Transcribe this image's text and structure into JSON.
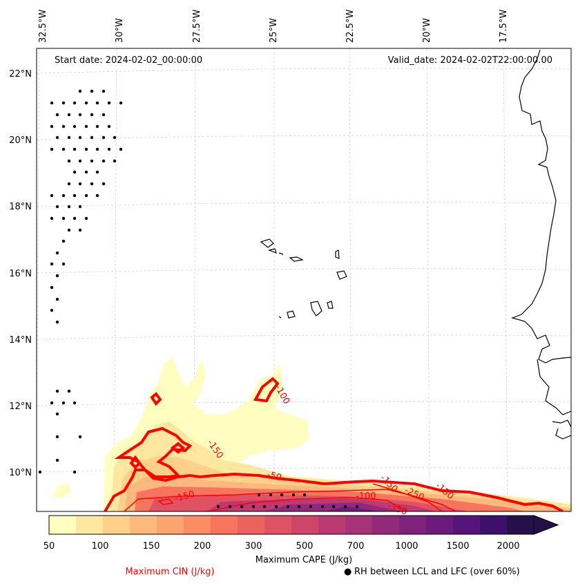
{
  "map": {
    "start_date": "Start date: 2024-02-02_00:00:00",
    "valid_date": "Valid_date: 2024-02-02T22:00:00.00",
    "lon_labels": [
      "32.5°W",
      "30°W",
      "27.5°W",
      "25°W",
      "22.5°W",
      "20°W",
      "17.5°W"
    ],
    "lat_labels": [
      "22°N",
      "20°N",
      "18°N",
      "16°N",
      "14°N",
      "12°N",
      "10°N"
    ],
    "cin_contour_labels": [
      "-100",
      "-150",
      "-50",
      "-150",
      "-100",
      "-250",
      "-150",
      "-150",
      "-350"
    ]
  },
  "colorbar": {
    "ticks": [
      "50",
      "100",
      "150",
      "200",
      "300",
      "500",
      "700",
      "1000",
      "1500",
      "2000"
    ],
    "label": "Maximum CAPE (J/kg)",
    "colors": [
      "#fffec0",
      "#fee7a0",
      "#fed08a",
      "#fdb97d",
      "#fca46e",
      "#fb8c63",
      "#f6755c",
      "#ec625d",
      "#e05263",
      "#cf4469",
      "#bb3a72",
      "#a73277",
      "#93297a",
      "#7f227b",
      "#6b1c7b",
      "#56157a",
      "#3f0f6e",
      "#26104a"
    ]
  },
  "legend": {
    "cin": "Maximum CIN (J/kg)",
    "rh": "RH between LCL and LFC (over 60%)",
    "rh_marker": "●"
  },
  "colors": {
    "cin": "#ff0000",
    "coast": "#000000",
    "grid": "#cccccc"
  }
}
